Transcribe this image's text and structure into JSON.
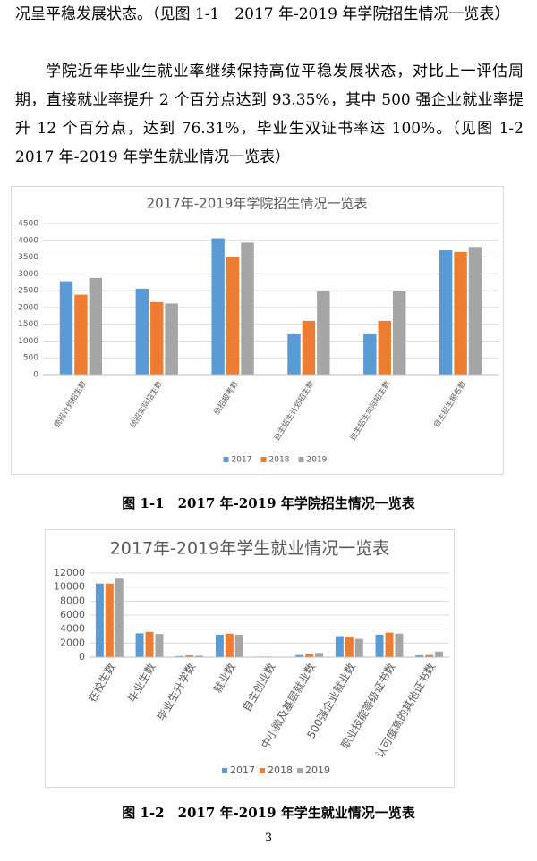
{
  "paragraphs": [
    "况呈平稳发展状态。（见图 1-1　2017 年-2019 年学院招生情况一览表）",
    "学院近年毕业生就业率继续保持高位平稳发展状态，对比上一评估周期，直接就业率提升 2 个百分点达到 93.35%，其中 500 强企业就业率提升 12 个百分点，达到 76.31%，毕业生双证书率达 100%。（见图 1-2　2017 年-2019 年学生就业情况一览表）"
  ],
  "chart_data": [
    {
      "type": "bar",
      "title": "2017年-2019年学院招生情况一览表",
      "categories": [
        "统招计划招生数",
        "统招实际招生数",
        "统招报考数",
        "自主招生计划招生数",
        "自主招生实际招生数",
        "自主招生报名数"
      ],
      "series": [
        {
          "name": "2017",
          "color": "#5b9bd5",
          "values": [
            2780,
            2560,
            4060,
            1200,
            1200,
            3700
          ]
        },
        {
          "name": "2018",
          "color": "#ed7d31",
          "values": [
            2380,
            2160,
            3500,
            1600,
            1600,
            3650
          ]
        },
        {
          "name": "2019",
          "color": "#a5a5a5",
          "values": [
            2880,
            2120,
            3930,
            2480,
            2480,
            3800
          ]
        }
      ],
      "ylim": [
        0,
        4500
      ],
      "yticks": [
        0,
        500,
        1000,
        1500,
        2000,
        2500,
        3000,
        3500,
        4000,
        4500
      ],
      "grid": true,
      "legend": "bottom"
    },
    {
      "type": "bar",
      "title": "2017年-2019年学生就业情况一览表",
      "categories": [
        "在校生数",
        "毕业生数",
        "毕业生升学数",
        "就业数",
        "自主创业数",
        "中小微及基层就业数",
        "500强企业就业数",
        "职业技能等级证书数",
        "认可度高的其他证书数"
      ],
      "series": [
        {
          "name": "2017",
          "color": "#5b9bd5",
          "values": [
            10500,
            3400,
            150,
            3200,
            80,
            300,
            3000,
            3200,
            250
          ]
        },
        {
          "name": "2018",
          "color": "#ed7d31",
          "values": [
            10500,
            3600,
            250,
            3350,
            80,
            500,
            2900,
            3500,
            300
          ]
        },
        {
          "name": "2019",
          "color": "#a5a5a5",
          "values": [
            11200,
            3300,
            200,
            3200,
            60,
            600,
            2600,
            3350,
            800
          ]
        }
      ],
      "ylim": [
        0,
        12000
      ],
      "yticks": [
        0,
        2000,
        4000,
        6000,
        8000,
        10000,
        12000
      ],
      "grid": true,
      "legend": "bottom"
    }
  ],
  "captions": [
    "图 1-1　2017 年-2019 年学院招生情况一览表",
    "图 1-2　2017 年-2019 年学生就业情况一览表"
  ],
  "page_number": "3"
}
